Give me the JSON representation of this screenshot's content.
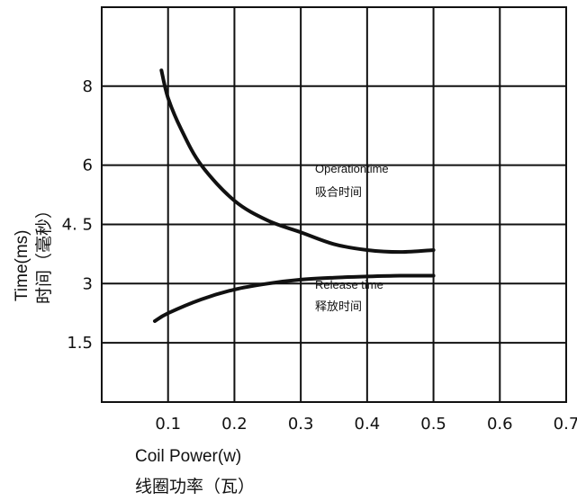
{
  "chart_data": {
    "type": "line",
    "xlabel": "Coil Power(w)",
    "xlabel_cn": "线圈功率（瓦）",
    "ylabel": "Time(ms)",
    "ylabel_cn": "时间（毫秒）",
    "xlim": [
      0,
      0.7
    ],
    "ylim": [
      0,
      10
    ],
    "grid": true,
    "x_ticks": [
      0.1,
      0.2,
      0.3,
      0.4,
      0.5,
      0.6,
      0.7
    ],
    "x_tick_labels": [
      "0.1",
      "0.2",
      "0.3",
      "0.4",
      "0.5",
      "0.6",
      "0.7"
    ],
    "y_ticks": [
      1.5,
      3,
      4.5,
      6,
      8
    ],
    "y_tick_labels": [
      "1.5",
      "3",
      "4. 5",
      "6",
      "8"
    ],
    "series": [
      {
        "name": "Operationtime",
        "name_cn": "吸合时间",
        "x": [
          0.09,
          0.1,
          0.12,
          0.15,
          0.2,
          0.25,
          0.3,
          0.35,
          0.4,
          0.45,
          0.5
        ],
        "y": [
          8.4,
          7.7,
          6.9,
          6.0,
          5.1,
          4.6,
          4.3,
          4.0,
          3.85,
          3.8,
          3.85
        ]
      },
      {
        "name": "Release time",
        "name_cn": "释放时间",
        "x": [
          0.08,
          0.1,
          0.15,
          0.2,
          0.25,
          0.3,
          0.35,
          0.4,
          0.45,
          0.5
        ],
        "y": [
          2.05,
          2.25,
          2.6,
          2.85,
          3.0,
          3.1,
          3.15,
          3.18,
          3.2,
          3.2
        ]
      }
    ],
    "annotations": {
      "operate": "Operationtime",
      "operate_cn": "吸合时间",
      "release": "Release time",
      "release_cn": "释放时间"
    },
    "color": "#111111"
  }
}
